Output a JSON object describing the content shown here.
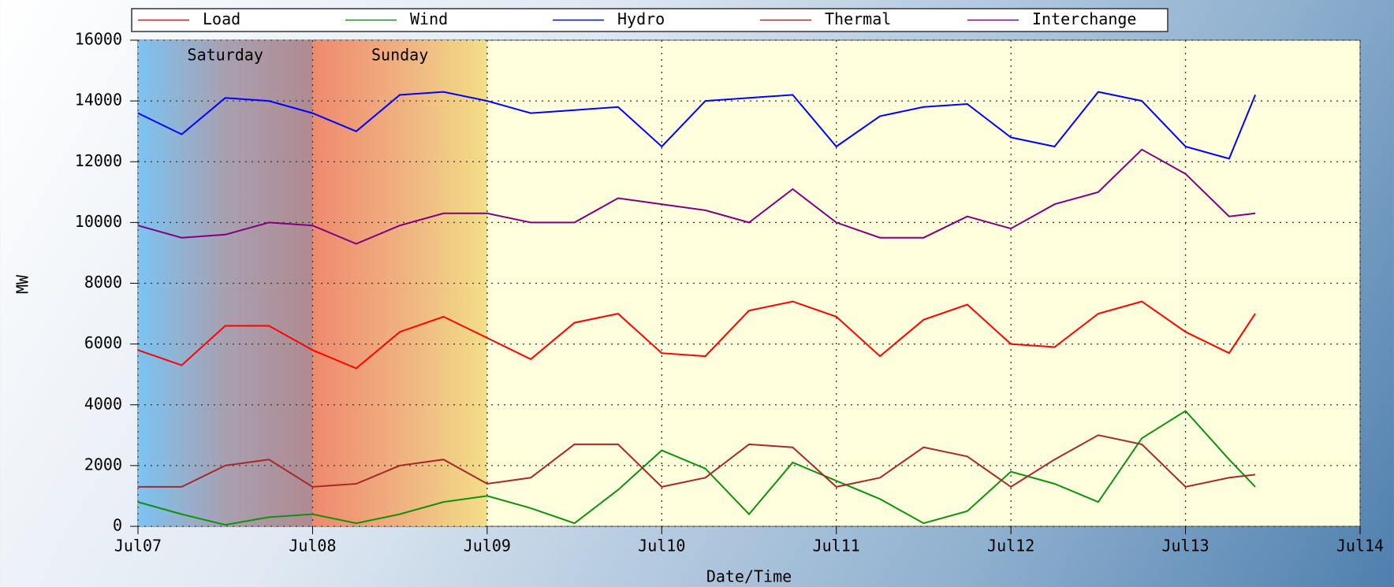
{
  "chart_data": {
    "type": "line",
    "xlabel": "Date/Time",
    "ylabel": "MW",
    "x": [
      0,
      0.25,
      0.5,
      0.75,
      1,
      1.25,
      1.5,
      1.75,
      2,
      2.25,
      2.5,
      2.75,
      3,
      3.25,
      3.5,
      3.75,
      4,
      4.25,
      4.5,
      4.75,
      5,
      5.25,
      5.5,
      5.75,
      6,
      6.25,
      6.4
    ],
    "series": [
      {
        "name": "Load",
        "color": "#ff0000",
        "values": [
          5800,
          5300,
          6600,
          6600,
          5800,
          5200,
          6400,
          6900,
          6200,
          5500,
          6700,
          7000,
          5700,
          5600,
          7100,
          7400,
          6900,
          5600,
          6800,
          7300,
          6000,
          5900,
          7000,
          7400,
          6400,
          5700,
          7000
        ]
      },
      {
        "name": "Wind",
        "color": "#109010",
        "values": [
          800,
          400,
          50,
          300,
          400,
          100,
          400,
          800,
          1000,
          600,
          100,
          1200,
          2500,
          1900,
          400,
          2100,
          1500,
          900,
          100,
          500,
          1800,
          1400,
          800,
          2900,
          3800,
          2200,
          1300
        ]
      },
      {
        "name": "Hydro",
        "color": "#0000ff",
        "values": [
          13600,
          12900,
          14100,
          14000,
          13600,
          13000,
          14200,
          14300,
          14000,
          13600,
          13700,
          13800,
          12500,
          14000,
          14100,
          14200,
          12500,
          13500,
          13800,
          13900,
          12800,
          12500,
          14300,
          14000,
          12500,
          12100,
          14200
        ]
      },
      {
        "name": "Thermal",
        "color": "#a52a2a",
        "values": [
          1300,
          1300,
          2000,
          2200,
          1300,
          1400,
          2000,
          2200,
          1400,
          1600,
          2700,
          2700,
          1300,
          1600,
          2700,
          2600,
          1300,
          1600,
          2600,
          2300,
          1300,
          2200,
          3000,
          2700,
          1300,
          1600,
          1700
        ]
      },
      {
        "name": "Interchange",
        "color": "#800080",
        "values": [
          9900,
          9500,
          9600,
          10000,
          9900,
          9300,
          9900,
          10300,
          10300,
          10000,
          10000,
          10800,
          10600,
          10400,
          10000,
          11100,
          10000,
          9500,
          9500,
          10200,
          9800,
          10600,
          11000,
          12400,
          11600,
          10200,
          10300
        ]
      }
    ],
    "bands": [
      {
        "label": "Saturday",
        "start": 0,
        "end": 1
      },
      {
        "label": "Sunday",
        "start": 1,
        "end": 2
      }
    ],
    "xlim": [
      0,
      7
    ],
    "xticks": [
      {
        "value": 0,
        "label": "Jul07"
      },
      {
        "value": 1,
        "label": "Jul08"
      },
      {
        "value": 2,
        "label": "Jul09"
      },
      {
        "value": 3,
        "label": "Jul10"
      },
      {
        "value": 4,
        "label": "Jul11"
      },
      {
        "value": 5,
        "label": "Jul12"
      },
      {
        "value": 6,
        "label": "Jul13"
      },
      {
        "value": 7,
        "label": "Jul14"
      }
    ],
    "ylim": [
      0,
      16000
    ],
    "yticks": [
      0,
      2000,
      4000,
      6000,
      8000,
      10000,
      12000,
      14000,
      16000
    ],
    "grid": true
  }
}
